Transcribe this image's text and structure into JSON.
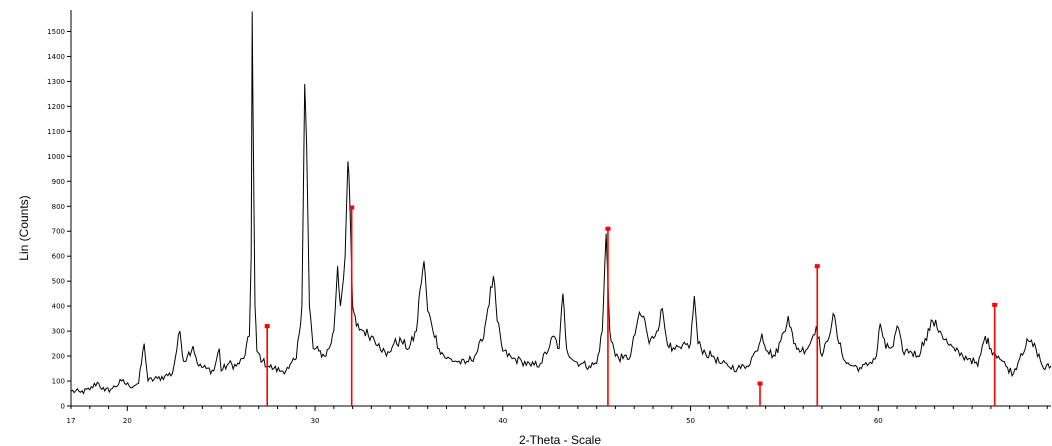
{
  "chart_data": {
    "type": "line",
    "title": "",
    "xlabel": "2-Theta - Scale",
    "ylabel": "Lin (Counts)",
    "xlim": [
      17,
      69.2
    ],
    "ylim": [
      0,
      1570
    ],
    "grid": false,
    "x_ticks": [
      17,
      20,
      30,
      40,
      50,
      60
    ],
    "y_ticks": [
      0,
      100,
      200,
      300,
      400,
      500,
      600,
      700,
      800,
      900,
      1000,
      1100,
      1200,
      1300,
      1400,
      1500
    ],
    "colors": {
      "pattern": "#000000",
      "reference": "#ff0000"
    },
    "series": [
      {
        "type": "line",
        "values": [
          [
            17.0,
            60
          ],
          [
            17.5,
            55
          ],
          [
            18.0,
            65
          ],
          [
            18.4,
            95
          ],
          [
            18.8,
            60
          ],
          [
            19.2,
            70
          ],
          [
            19.7,
            100
          ],
          [
            20.1,
            80
          ],
          [
            20.6,
            90
          ],
          [
            20.9,
            250
          ],
          [
            21.1,
            100
          ],
          [
            21.6,
            110
          ],
          [
            22.0,
            120
          ],
          [
            22.4,
            130
          ],
          [
            22.8,
            300
          ],
          [
            23.0,
            180
          ],
          [
            23.2,
            200
          ],
          [
            23.5,
            240
          ],
          [
            23.8,
            160
          ],
          [
            24.2,
            150
          ],
          [
            24.6,
            140
          ],
          [
            24.9,
            230
          ],
          [
            25.0,
            140
          ],
          [
            25.4,
            170
          ],
          [
            25.8,
            160
          ],
          [
            26.2,
            190
          ],
          [
            26.5,
            280
          ],
          [
            26.6,
            600
          ],
          [
            26.65,
            1580
          ],
          [
            26.7,
            1150
          ],
          [
            26.8,
            400
          ],
          [
            26.9,
            220
          ],
          [
            27.2,
            180
          ],
          [
            27.5,
            160
          ],
          [
            27.8,
            150
          ],
          [
            28.2,
            140
          ],
          [
            28.6,
            150
          ],
          [
            29.0,
            190
          ],
          [
            29.3,
            400
          ],
          [
            29.45,
            1290
          ],
          [
            29.55,
            1050
          ],
          [
            29.7,
            400
          ],
          [
            29.9,
            230
          ],
          [
            30.2,
            220
          ],
          [
            30.5,
            200
          ],
          [
            30.8,
            240
          ],
          [
            31.0,
            300
          ],
          [
            31.2,
            560
          ],
          [
            31.35,
            400
          ],
          [
            31.6,
            600
          ],
          [
            31.75,
            980
          ],
          [
            31.85,
            820
          ],
          [
            32.0,
            400
          ],
          [
            32.2,
            320
          ],
          [
            32.6,
            300
          ],
          [
            33.0,
            280
          ],
          [
            33.4,
            250
          ],
          [
            33.8,
            200
          ],
          [
            34.2,
            250
          ],
          [
            34.6,
            260
          ],
          [
            35.0,
            230
          ],
          [
            35.4,
            300
          ],
          [
            35.6,
            470
          ],
          [
            35.8,
            580
          ],
          [
            36.0,
            380
          ],
          [
            36.2,
            330
          ],
          [
            36.6,
            230
          ],
          [
            37.0,
            190
          ],
          [
            37.5,
            180
          ],
          [
            38.0,
            170
          ],
          [
            38.5,
            200
          ],
          [
            38.9,
            260
          ],
          [
            39.2,
            390
          ],
          [
            39.5,
            520
          ],
          [
            39.7,
            340
          ],
          [
            40.0,
            220
          ],
          [
            40.5,
            190
          ],
          [
            41.0,
            180
          ],
          [
            41.5,
            160
          ],
          [
            42.0,
            170
          ],
          [
            42.5,
            240
          ],
          [
            42.7,
            280
          ],
          [
            43.0,
            230
          ],
          [
            43.2,
            450
          ],
          [
            43.4,
            230
          ],
          [
            43.8,
            180
          ],
          [
            44.2,
            170
          ],
          [
            44.6,
            160
          ],
          [
            45.0,
            170
          ],
          [
            45.3,
            300
          ],
          [
            45.5,
            690
          ],
          [
            45.7,
            300
          ],
          [
            46.0,
            200
          ],
          [
            46.4,
            190
          ],
          [
            46.8,
            200
          ],
          [
            47.2,
            350
          ],
          [
            47.5,
            360
          ],
          [
            47.8,
            250
          ],
          [
            48.2,
            300
          ],
          [
            48.5,
            390
          ],
          [
            48.7,
            280
          ],
          [
            49.0,
            220
          ],
          [
            49.5,
            230
          ],
          [
            50.0,
            250
          ],
          [
            50.2,
            440
          ],
          [
            50.4,
            250
          ],
          [
            50.8,
            210
          ],
          [
            51.2,
            200
          ],
          [
            51.6,
            170
          ],
          [
            52.0,
            160
          ],
          [
            52.5,
            150
          ],
          [
            53.0,
            160
          ],
          [
            53.5,
            220
          ],
          [
            53.8,
            290
          ],
          [
            54.1,
            220
          ],
          [
            54.5,
            200
          ],
          [
            54.8,
            260
          ],
          [
            55.2,
            360
          ],
          [
            55.5,
            250
          ],
          [
            55.9,
            220
          ],
          [
            56.3,
            240
          ],
          [
            56.7,
            320
          ],
          [
            57.0,
            200
          ],
          [
            57.3,
            260
          ],
          [
            57.6,
            370
          ],
          [
            57.9,
            250
          ],
          [
            58.3,
            170
          ],
          [
            58.7,
            160
          ],
          [
            59.1,
            150
          ],
          [
            59.5,
            170
          ],
          [
            59.9,
            200
          ],
          [
            60.1,
            330
          ],
          [
            60.4,
            230
          ],
          [
            60.8,
            240
          ],
          [
            61.0,
            320
          ],
          [
            61.3,
            220
          ],
          [
            61.7,
            220
          ],
          [
            62.1,
            200
          ],
          [
            62.5,
            270
          ],
          [
            62.9,
            340
          ],
          [
            63.3,
            300
          ],
          [
            63.7,
            250
          ],
          [
            64.1,
            220
          ],
          [
            64.5,
            200
          ],
          [
            64.9,
            190
          ],
          [
            65.3,
            160
          ],
          [
            65.7,
            280
          ],
          [
            66.0,
            230
          ],
          [
            66.4,
            200
          ],
          [
            66.8,
            160
          ],
          [
            67.2,
            130
          ],
          [
            67.6,
            210
          ],
          [
            68.0,
            260
          ],
          [
            68.4,
            230
          ],
          [
            68.8,
            150
          ],
          [
            69.2,
            160
          ]
        ]
      },
      {
        "type": "stick",
        "values": [
          [
            27.45,
            320
          ],
          [
            31.95,
            795
          ],
          [
            45.6,
            710
          ],
          [
            53.7,
            90
          ],
          [
            56.75,
            560
          ],
          [
            66.2,
            405
          ]
        ]
      }
    ]
  }
}
